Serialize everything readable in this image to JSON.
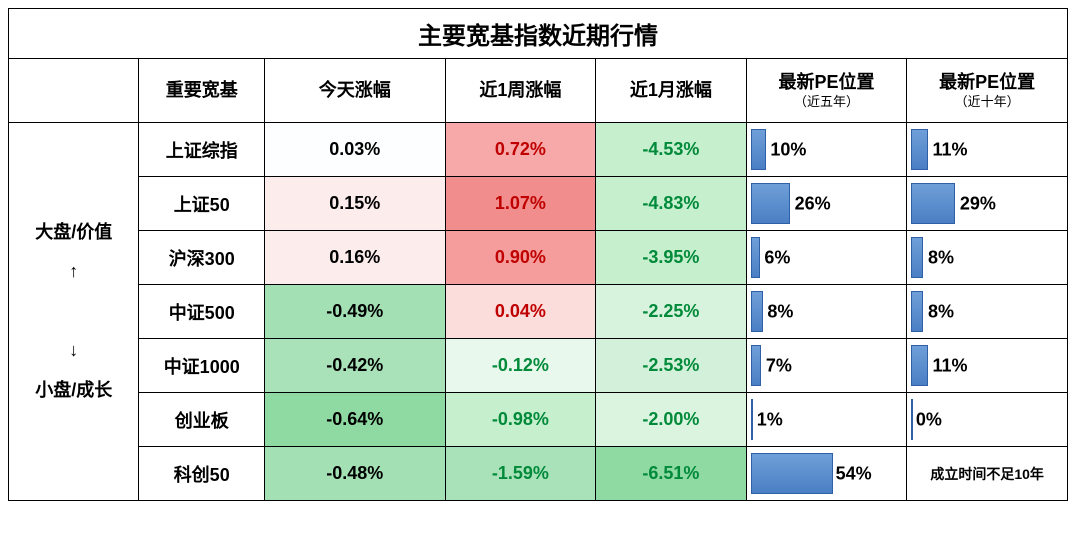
{
  "title": "主要宽基指数近期行情",
  "columns": {
    "side": "",
    "name": "重要宽基",
    "today": "今天涨幅",
    "week": "近1周涨幅",
    "month": "近1月涨幅",
    "pe5": "最新PE位置",
    "pe5_sub": "（近五年）",
    "pe10": "最新PE位置",
    "pe10_sub": "（近十年）"
  },
  "side_label_lines": [
    "大盘/价值",
    "↑",
    "",
    "↓",
    "小盘/成长"
  ],
  "col_widths": {
    "side": 130,
    "name": 125,
    "today": 180,
    "week": 150,
    "month": 150,
    "pe5": 160,
    "pe10": 160
  },
  "colors": {
    "text_green": "#008a3a",
    "text_red": "#c00000",
    "text_black": "#000000"
  },
  "rows": [
    {
      "name": "上证综指",
      "today": {
        "text": "0.03%",
        "bg": "#fdfeff",
        "fg": "#000000"
      },
      "week": {
        "text": "0.72%",
        "bg": "#f6a9a8",
        "fg": "#c00000"
      },
      "month": {
        "text": "-4.53%",
        "bg": "#c6efce",
        "fg": "#008a3a"
      },
      "pe5": {
        "pct": 10,
        "label": "10%"
      },
      "pe10": {
        "pct": 11,
        "label": "11%"
      }
    },
    {
      "name": "上证50",
      "today": {
        "text": "0.15%",
        "bg": "#fcecec",
        "fg": "#000000"
      },
      "week": {
        "text": "1.07%",
        "bg": "#f18d8c",
        "fg": "#c00000"
      },
      "month": {
        "text": "-4.83%",
        "bg": "#c6efce",
        "fg": "#008a3a"
      },
      "pe5": {
        "pct": 26,
        "label": "26%"
      },
      "pe10": {
        "pct": 29,
        "label": "29%"
      }
    },
    {
      "name": "沪深300",
      "today": {
        "text": "0.16%",
        "bg": "#fcecec",
        "fg": "#000000"
      },
      "week": {
        "text": "0.90%",
        "bg": "#f49d9c",
        "fg": "#c00000"
      },
      "month": {
        "text": "-3.95%",
        "bg": "#c6efce",
        "fg": "#008a3a"
      },
      "pe5": {
        "pct": 6,
        "label": "6%"
      },
      "pe10": {
        "pct": 8,
        "label": "8%"
      }
    },
    {
      "name": "中证500",
      "today": {
        "text": "-0.49%",
        "bg": "#a3e0b4",
        "fg": "#000000"
      },
      "week": {
        "text": "0.04%",
        "bg": "#fbdddc",
        "fg": "#c00000"
      },
      "month": {
        "text": "-2.25%",
        "bg": "#d7f3dd",
        "fg": "#008a3a"
      },
      "pe5": {
        "pct": 8,
        "label": "8%"
      },
      "pe10": {
        "pct": 8,
        "label": "8%"
      }
    },
    {
      "name": "中证1000",
      "today": {
        "text": "-0.42%",
        "bg": "#a9e2b9",
        "fg": "#000000"
      },
      "week": {
        "text": "-0.12%",
        "bg": "#e8f8ec",
        "fg": "#008a3a"
      },
      "month": {
        "text": "-2.53%",
        "bg": "#d3f1da",
        "fg": "#008a3a"
      },
      "pe5": {
        "pct": 7,
        "label": "7%"
      },
      "pe10": {
        "pct": 11,
        "label": "11%"
      }
    },
    {
      "name": "创业板",
      "today": {
        "text": "-0.64%",
        "bg": "#8fd9a3",
        "fg": "#000000"
      },
      "week": {
        "text": "-0.98%",
        "bg": "#c6efce",
        "fg": "#008a3a"
      },
      "month": {
        "text": "-2.00%",
        "bg": "#dbf4e0",
        "fg": "#008a3a"
      },
      "pe5": {
        "pct": 1,
        "label": "1%"
      },
      "pe10": {
        "pct": 0,
        "label": "0%"
      }
    },
    {
      "name": "科创50",
      "today": {
        "text": "-0.48%",
        "bg": "#a3e0b4",
        "fg": "#000000"
      },
      "week": {
        "text": "-1.59%",
        "bg": "#a9e2b9",
        "fg": "#008a3a"
      },
      "month": {
        "text": "-6.51%",
        "bg": "#8fd9a3",
        "fg": "#008a3a"
      },
      "pe5": {
        "pct": 54,
        "label": "54%"
      },
      "pe10": {
        "note": "成立时间不足10年"
      }
    }
  ]
}
